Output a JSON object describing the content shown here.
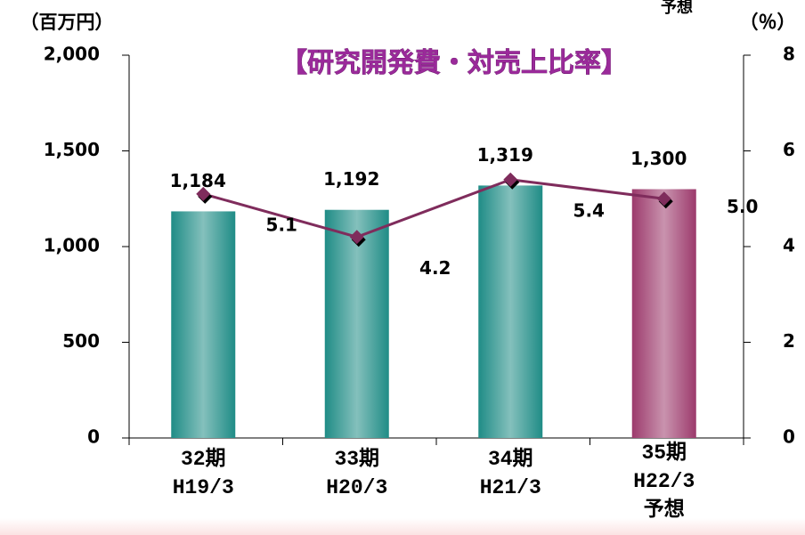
{
  "chart_data": {
    "type": "bar_line",
    "title": "【研究開発費・対売上比率】",
    "ylabel": "（百万円）",
    "y2label": "（％）",
    "annotation": "予想",
    "categories": [
      "32期\nH19/3",
      "33期\nH20/3",
      "34期\nH21/3",
      "35期\nH22/3\n予想"
    ],
    "series": [
      {
        "type": "bar",
        "colors": [
          "#1f8c86",
          "#1f8c86",
          "#1f8c86",
          "#9c3a6c"
        ],
        "values": [
          1184,
          1192,
          1319,
          1300
        ],
        "value_labels": [
          "1,184",
          "1,192",
          "1,319",
          "1,300"
        ]
      },
      {
        "type": "line",
        "axis": "y2",
        "color": "#7f2c5c",
        "values": [
          5.1,
          4.2,
          5.4,
          5.0
        ],
        "value_labels": [
          "5.1",
          "4.2",
          "5.4",
          "5.0"
        ]
      }
    ],
    "ylim": [
      0,
      2000
    ],
    "yticks": [
      0,
      500,
      {
        "value": 1000,
        "label": "1,000"
      },
      {
        "value": 1500,
        "label": "1,500"
      },
      {
        "value": 2000,
        "label": "2,000"
      }
    ],
    "y2lim": [
      0,
      8
    ],
    "y2ticks": [
      0,
      2,
      4,
      6,
      8
    ]
  }
}
